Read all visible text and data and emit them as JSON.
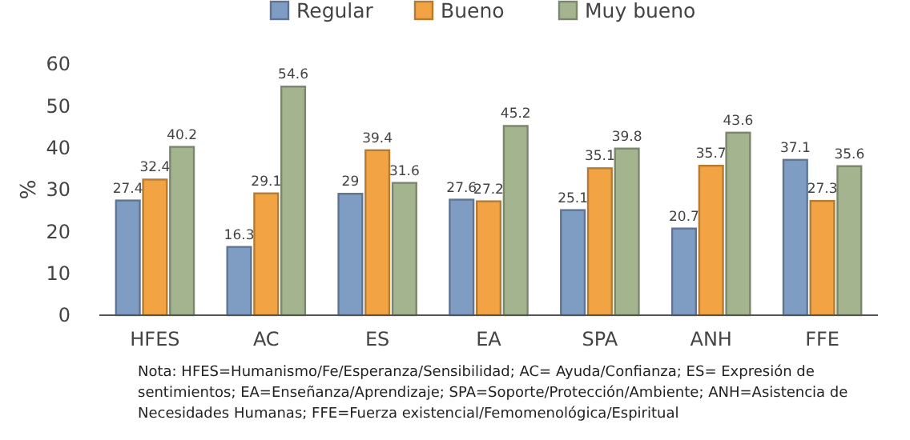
{
  "chart_data": {
    "type": "bar",
    "ylabel": "%",
    "categories": [
      "HFES",
      "AC",
      "ES",
      "EA",
      "SPA",
      "ANH",
      "FFE"
    ],
    "series": [
      {
        "name": "Regular",
        "color": "#7f9cc3",
        "values": [
          27.4,
          16.3,
          29,
          27.6,
          25.1,
          20.7,
          37.1
        ]
      },
      {
        "name": "Bueno",
        "color": "#f2a444",
        "values": [
          32.4,
          29.1,
          39.4,
          27.2,
          35.1,
          35.7,
          27.3
        ]
      },
      {
        "name": "Muy bueno",
        "color": "#a3b48f",
        "values": [
          40.2,
          54.6,
          31.6,
          45.2,
          39.8,
          43.6,
          35.6
        ]
      }
    ],
    "ylim": [
      0,
      60
    ],
    "yticks": [
      0,
      10,
      20,
      30,
      40,
      50,
      60
    ],
    "grid": false,
    "legend": "top",
    "data_labels": true,
    "annotations": [
      "Nota: HFES=Humanismo/Fe/Esperanza/Sensibilidad; AC= Ayuda/Confianza; ES= Expresión de sentimientos; EA=Enseñanza/Aprendizaje; SPA=Soporte/Protección/Ambiente; ANH=Asistencia de Necesidades Humanas; FFE=Fuerza existencial/Femomenológica/Espiritual"
    ]
  }
}
